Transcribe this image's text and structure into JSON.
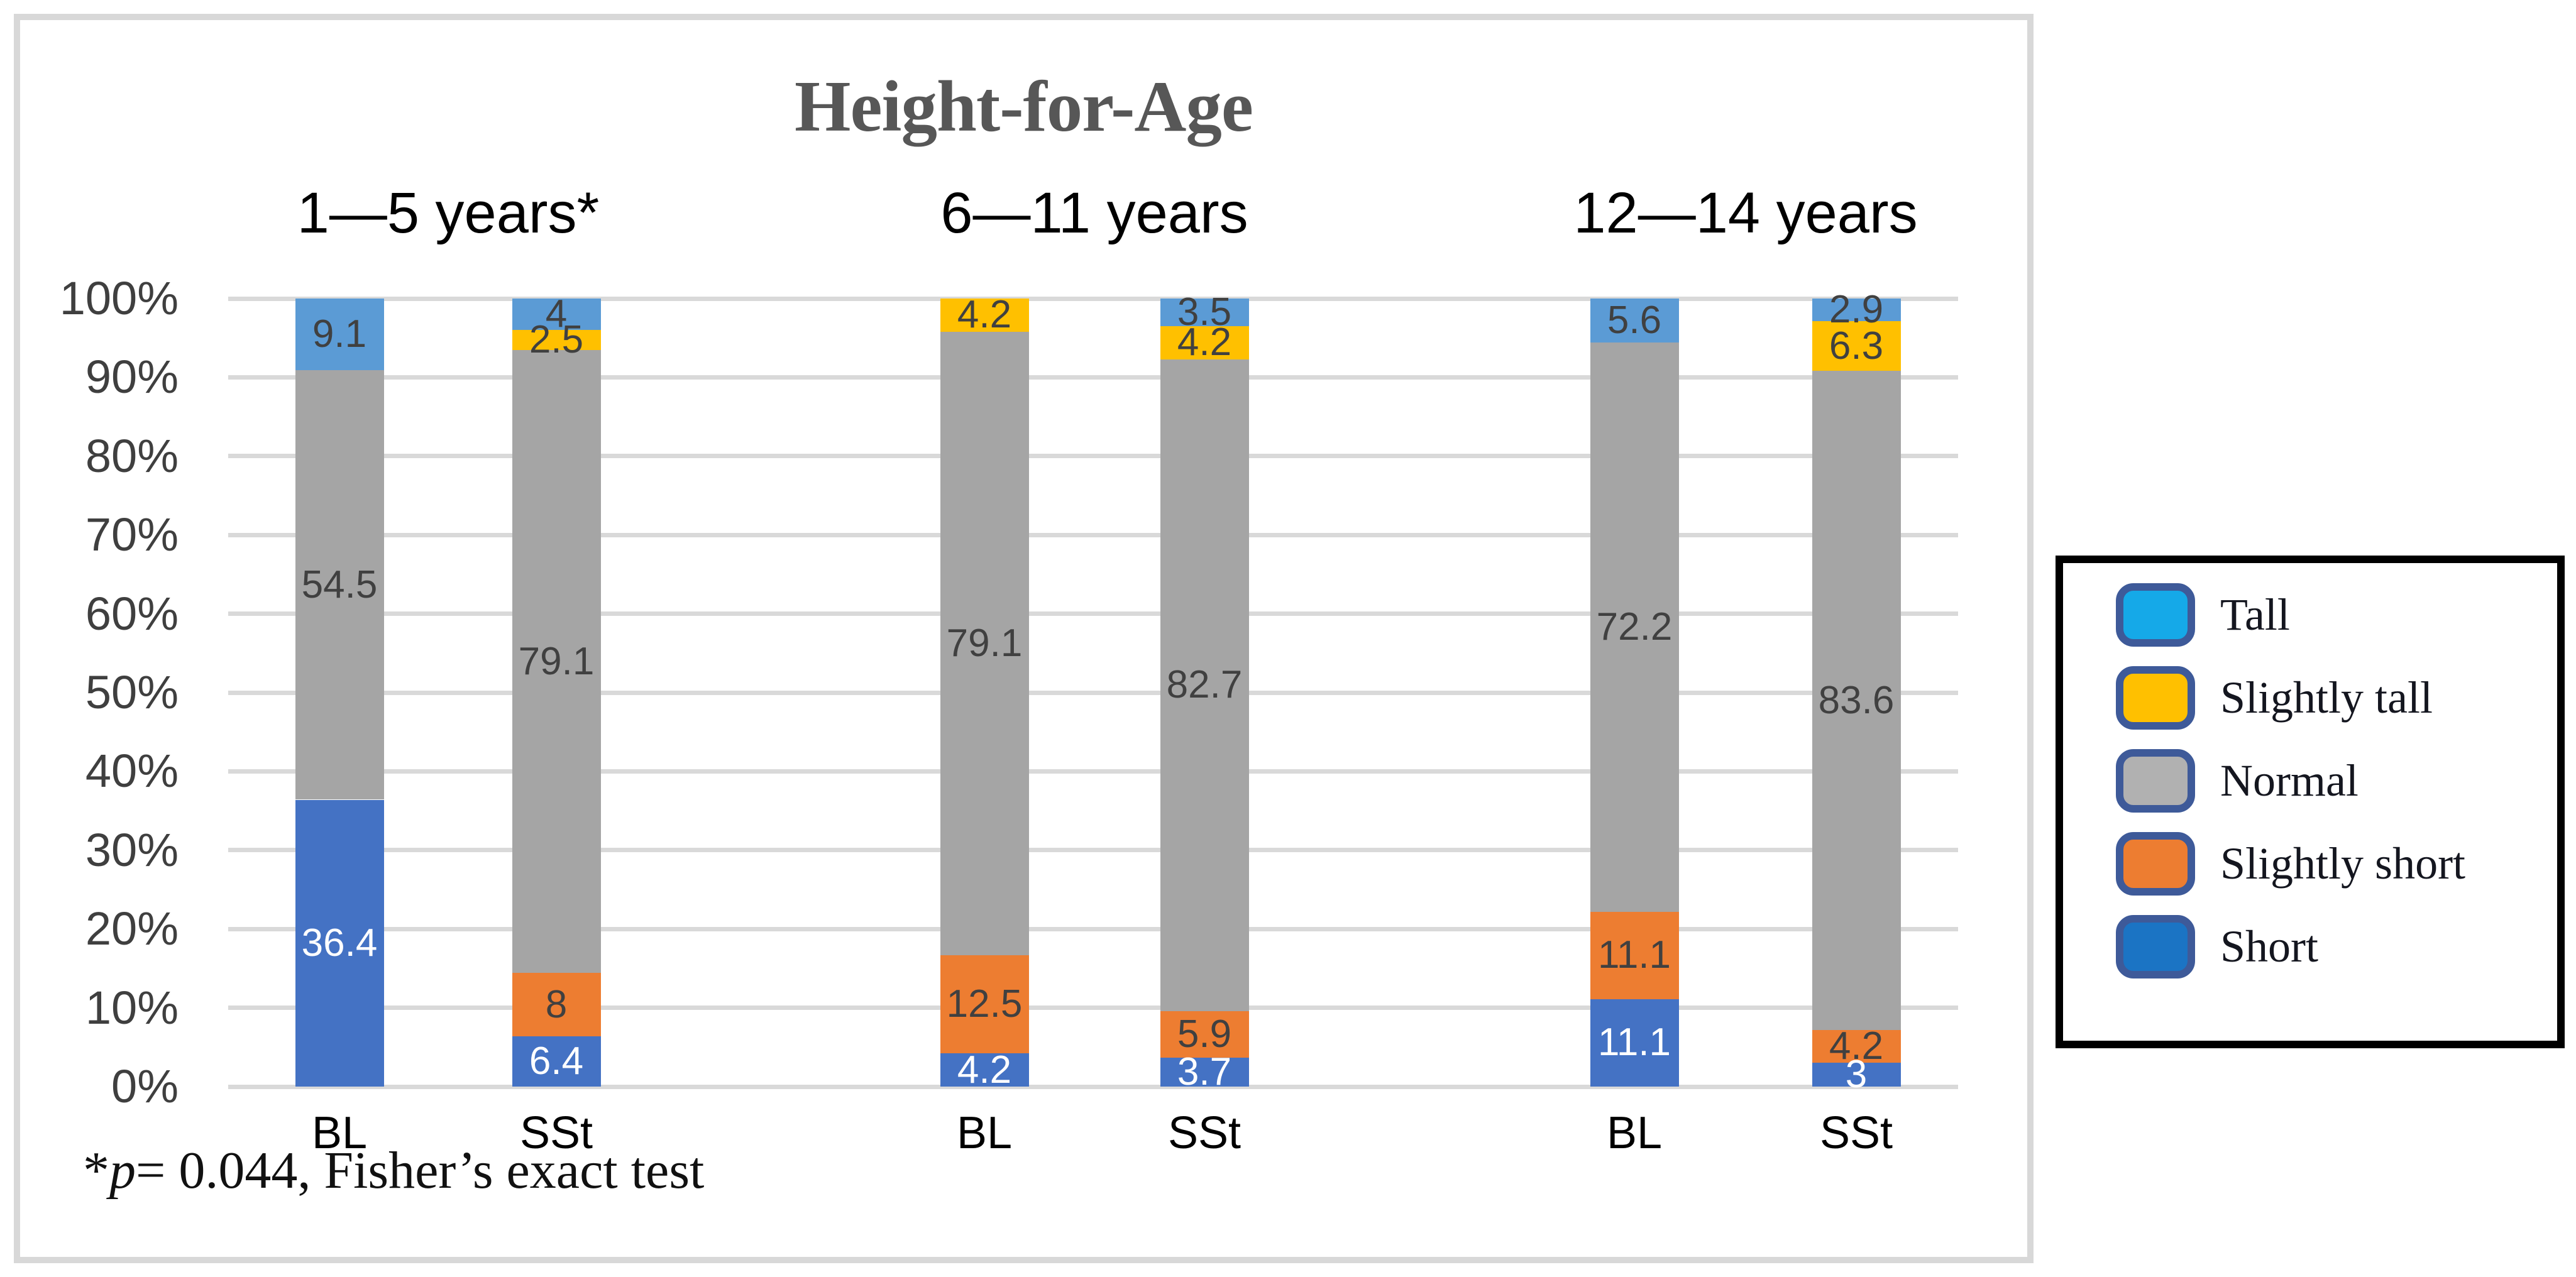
{
  "figure": {
    "title": "Height-for-Age",
    "footnote": {
      "star": "*",
      "p": "p",
      "rest": "= 0.044, Fisher’s exact test"
    }
  },
  "axis": {
    "yticks": [
      {
        "pct": 0,
        "label": "0%"
      },
      {
        "pct": 10,
        "label": "10%"
      },
      {
        "pct": 20,
        "label": "20%"
      },
      {
        "pct": 30,
        "label": "30%"
      },
      {
        "pct": 40,
        "label": "40%"
      },
      {
        "pct": 50,
        "label": "50%"
      },
      {
        "pct": 60,
        "label": "60%"
      },
      {
        "pct": 70,
        "label": "70%"
      },
      {
        "pct": 80,
        "label": "80%"
      },
      {
        "pct": 90,
        "label": "90%"
      },
      {
        "pct": 100,
        "label": "100%"
      }
    ]
  },
  "palette": {
    "Short": "#4472C4",
    "Slightly short": "#ED7D31",
    "Normal": "#A5A5A5",
    "Slightly tall": "#FFC000",
    "Tall": "#5B9BD5"
  },
  "label_colors": {
    "dark": "#404040",
    "light": "#FFFFFF"
  },
  "legend": {
    "swatch_border": "#3e5a99",
    "items": [
      {
        "label": "Tall",
        "color": "#15A9E8"
      },
      {
        "label": "Slightly tall",
        "color": "#FFC000"
      },
      {
        "label": "Normal",
        "color": "#B1B1B1"
      },
      {
        "label": "Slightly short",
        "color": "#ED7D31"
      },
      {
        "label": "Short",
        "color": "#1B74C4"
      }
    ]
  },
  "chart_data": {
    "type": "bar",
    "stacked_percent": true,
    "title": "Height-for-Age",
    "ylabel": "",
    "xlabel": "",
    "ylim": [
      0,
      100
    ],
    "grid": true,
    "legend_position": "right-outside",
    "legend_entries": [
      "Tall",
      "Slightly tall",
      "Normal",
      "Slightly short",
      "Short"
    ],
    "series_order_bottom_to_top": [
      "Short",
      "Slightly short",
      "Normal",
      "Slightly tall",
      "Tall"
    ],
    "footnote": "*p= 0.044, Fisher’s exact test",
    "groups": [
      {
        "label": "1—5 years*",
        "bars": [
          {
            "category": "BL",
            "segments": [
              {
                "series": "Short",
                "value": 36.4,
                "label": "36.4"
              },
              {
                "series": "Normal",
                "value": 54.5,
                "label": "54.5"
              },
              {
                "series": "Tall",
                "value": 9.1,
                "label": "9.1"
              }
            ]
          },
          {
            "category": "SSt",
            "segments": [
              {
                "series": "Short",
                "value": 6.4,
                "label": "6.4"
              },
              {
                "series": "Slightly short",
                "value": 8,
                "label": "8"
              },
              {
                "series": "Normal",
                "value": 79.1,
                "label": "79.1"
              },
              {
                "series": "Slightly tall",
                "value": 2.5,
                "label": "2.5"
              },
              {
                "series": "Tall",
                "value": 4,
                "label": "4"
              }
            ]
          }
        ]
      },
      {
        "label": "6—11 years",
        "bars": [
          {
            "category": "BL",
            "segments": [
              {
                "series": "Short",
                "value": 4.2,
                "label": "4.2"
              },
              {
                "series": "Slightly short",
                "value": 12.5,
                "label": "12.5"
              },
              {
                "series": "Normal",
                "value": 79.1,
                "label": "79.1"
              },
              {
                "series": "Slightly tall",
                "value": 4.2,
                "label": "4.2"
              }
            ]
          },
          {
            "category": "SSt",
            "segments": [
              {
                "series": "Short",
                "value": 3.7,
                "label": "3.7"
              },
              {
                "series": "Slightly short",
                "value": 5.9,
                "label": "5.9"
              },
              {
                "series": "Normal",
                "value": 82.7,
                "label": "82.7"
              },
              {
                "series": "Slightly tall",
                "value": 4.2,
                "label": "4.2"
              },
              {
                "series": "Tall",
                "value": 3.5,
                "label": "3.5"
              }
            ]
          }
        ]
      },
      {
        "label": "12—14 years",
        "bars": [
          {
            "category": "BL",
            "segments": [
              {
                "series": "Short",
                "value": 11.1,
                "label": "11.1"
              },
              {
                "series": "Slightly short",
                "value": 11.1,
                "label": "11.1"
              },
              {
                "series": "Normal",
                "value": 72.2,
                "label": "72.2"
              },
              {
                "series": "Tall",
                "value": 5.6,
                "label": "5.6"
              }
            ]
          },
          {
            "category": "SSt",
            "segments": [
              {
                "series": "Short",
                "value": 3,
                "label": "3"
              },
              {
                "series": "Slightly short",
                "value": 4.2,
                "label": "4.2"
              },
              {
                "series": "Normal",
                "value": 83.6,
                "label": "83.6"
              },
              {
                "series": "Slightly tall",
                "value": 6.3,
                "label": "6.3"
              },
              {
                "series": "Tall",
                "value": 2.9,
                "label": "2.9"
              }
            ]
          }
        ]
      }
    ]
  }
}
